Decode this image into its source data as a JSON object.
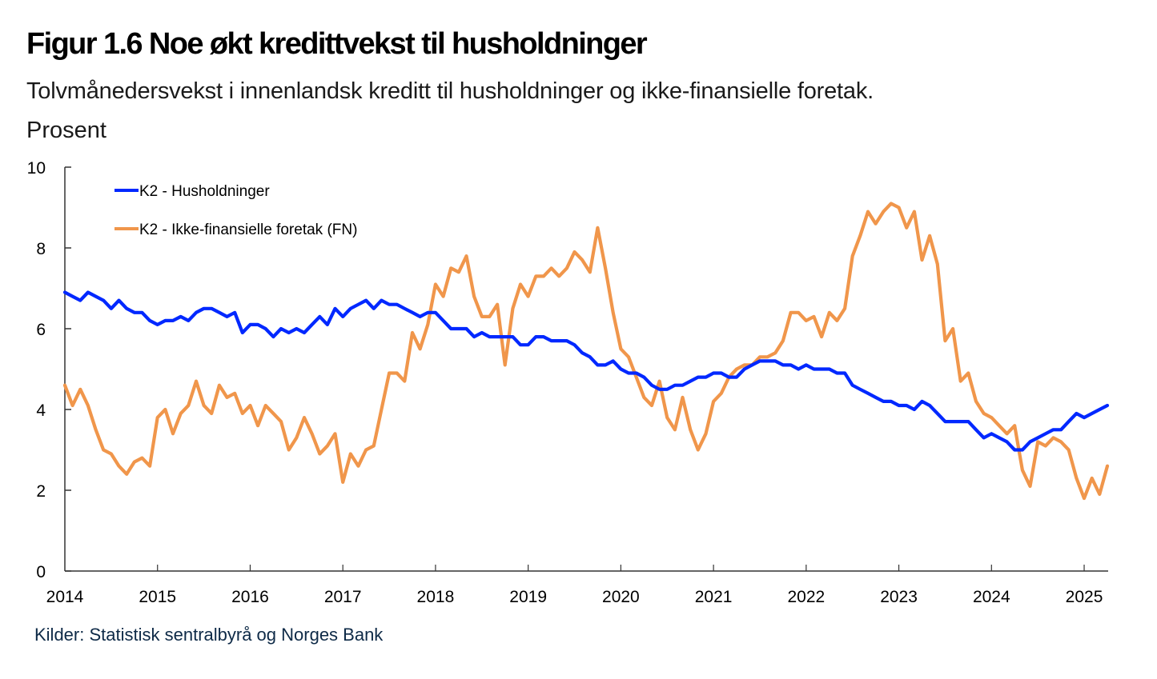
{
  "title": "Figur 1.6 Noe økt kredittvekst til husholdninger",
  "subtitle": "Tolvmånedersvekst i innenlandsk kreditt til husholdninger og ikke-finansielle foretak.",
  "unit_label": "Prosent",
  "source": "Kilder: Statistisk sentralbyrå og Norges Bank",
  "chart_data": {
    "type": "line",
    "title": "Figur 1.6 Noe økt kredittvekst til husholdninger",
    "subtitle": "Tolvmånedersvekst i innenlandsk kreditt til husholdninger og ikke-finansielle foretak.",
    "xlabel": "",
    "ylabel": "Prosent",
    "x_start": "2014-01",
    "x_frequency": "monthly",
    "x_end": "2025-04",
    "xlim": [
      2014,
      2025.3
    ],
    "ylim": [
      0,
      10
    ],
    "y_ticks": [
      0,
      2,
      4,
      6,
      8,
      10
    ],
    "x_ticks": [
      "2014",
      "2015",
      "2016",
      "2017",
      "2018",
      "2019",
      "2020",
      "2021",
      "2022",
      "2023",
      "2024",
      "2025"
    ],
    "grid": false,
    "legend_position": "top-left",
    "series": [
      {
        "name": "K2 - Husholdninger",
        "color": "#0028ff",
        "values": [
          6.9,
          6.8,
          6.7,
          6.9,
          6.8,
          6.7,
          6.5,
          6.7,
          6.5,
          6.4,
          6.4,
          6.2,
          6.1,
          6.2,
          6.2,
          6.3,
          6.2,
          6.4,
          6.5,
          6.5,
          6.4,
          6.3,
          6.4,
          5.9,
          6.1,
          6.1,
          6.0,
          5.8,
          6.0,
          5.9,
          6.0,
          5.9,
          6.1,
          6.3,
          6.1,
          6.5,
          6.3,
          6.5,
          6.6,
          6.7,
          6.5,
          6.7,
          6.6,
          6.6,
          6.5,
          6.4,
          6.3,
          6.4,
          6.4,
          6.2,
          6.0,
          6.0,
          6.0,
          5.8,
          5.9,
          5.8,
          5.8,
          5.8,
          5.8,
          5.6,
          5.6,
          5.8,
          5.8,
          5.7,
          5.7,
          5.7,
          5.6,
          5.4,
          5.3,
          5.1,
          5.1,
          5.2,
          5.0,
          4.9,
          4.9,
          4.8,
          4.6,
          4.5,
          4.5,
          4.6,
          4.6,
          4.7,
          4.8,
          4.8,
          4.9,
          4.9,
          4.8,
          4.8,
          5.0,
          5.1,
          5.2,
          5.2,
          5.2,
          5.1,
          5.1,
          5.0,
          5.1,
          5.0,
          5.0,
          5.0,
          4.9,
          4.9,
          4.6,
          4.5,
          4.4,
          4.3,
          4.2,
          4.2,
          4.1,
          4.1,
          4.0,
          4.2,
          4.1,
          3.9,
          3.7,
          3.7,
          3.7,
          3.7,
          3.5,
          3.3,
          3.4,
          3.3,
          3.2,
          3.0,
          3.0,
          3.2,
          3.3,
          3.4,
          3.5,
          3.5,
          3.7,
          3.9,
          3.8,
          3.9,
          4.0,
          4.1
        ]
      },
      {
        "name": "K2 - Ikke-finansielle foretak (FN)",
        "color": "#f0964b",
        "values": [
          4.6,
          4.1,
          4.5,
          4.1,
          3.5,
          3.0,
          2.9,
          2.6,
          2.4,
          2.7,
          2.8,
          2.6,
          3.8,
          4.0,
          3.4,
          3.9,
          4.1,
          4.7,
          4.1,
          3.9,
          4.6,
          4.3,
          4.4,
          3.9,
          4.1,
          3.6,
          4.1,
          3.9,
          3.7,
          3.0,
          3.3,
          3.8,
          3.4,
          2.9,
          3.1,
          3.4,
          2.2,
          2.9,
          2.6,
          3.0,
          3.1,
          4.0,
          4.9,
          4.9,
          4.7,
          5.9,
          5.5,
          6.1,
          7.1,
          6.8,
          7.5,
          7.4,
          7.8,
          6.8,
          6.3,
          6.3,
          6.6,
          5.1,
          6.5,
          7.1,
          6.8,
          7.3,
          7.3,
          7.5,
          7.3,
          7.5,
          7.9,
          7.7,
          7.4,
          8.5,
          7.5,
          6.4,
          5.5,
          5.3,
          4.8,
          4.3,
          4.1,
          4.7,
          3.8,
          3.5,
          4.3,
          3.5,
          3.0,
          3.4,
          4.2,
          4.4,
          4.8,
          5.0,
          5.1,
          5.1,
          5.3,
          5.3,
          5.4,
          5.7,
          6.4,
          6.4,
          6.2,
          6.3,
          5.8,
          6.4,
          6.2,
          6.5,
          7.8,
          8.3,
          8.9,
          8.6,
          8.9,
          9.1,
          9.0,
          8.5,
          8.9,
          7.7,
          8.3,
          7.6,
          5.7,
          6.0,
          4.7,
          4.9,
          4.2,
          3.9,
          3.8,
          3.6,
          3.4,
          3.6,
          2.5,
          2.1,
          3.2,
          3.1,
          3.3,
          3.2,
          3.0,
          2.3,
          1.8,
          2.3,
          1.9,
          2.6
        ]
      }
    ]
  }
}
